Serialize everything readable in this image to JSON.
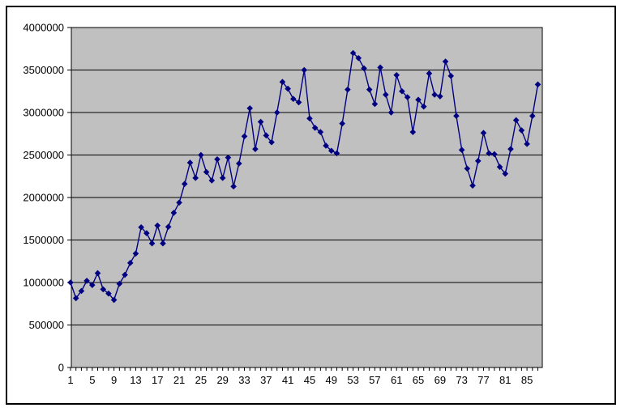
{
  "window": {
    "background": "#ffffff",
    "frame_border_color": "#000000"
  },
  "chart_data": {
    "type": "line",
    "title": "",
    "xlabel": "",
    "ylabel": "",
    "x_range": [
      1,
      87
    ],
    "values": [
      1000000,
      815000,
      900000,
      1020000,
      970000,
      1110000,
      920000,
      870000,
      795000,
      985000,
      1090000,
      1230000,
      1340000,
      1650000,
      1580000,
      1460000,
      1670000,
      1460000,
      1655000,
      1820000,
      1940000,
      2160000,
      2410000,
      2230000,
      2500000,
      2300000,
      2200000,
      2450000,
      2230000,
      2470000,
      2130000,
      2400000,
      2720000,
      3050000,
      2570000,
      2890000,
      2730000,
      2650000,
      3000000,
      3360000,
      3280000,
      3160000,
      3120000,
      3500000,
      2930000,
      2820000,
      2770000,
      2610000,
      2550000,
      2520000,
      2870000,
      3270000,
      3700000,
      3640000,
      3520000,
      3270000,
      3100000,
      3530000,
      3210000,
      3000000,
      3440000,
      3250000,
      3180000,
      2770000,
      3150000,
      3070000,
      3460000,
      3210000,
      3190000,
      3600000,
      3430000,
      2960000,
      2560000,
      2340000,
      2140000,
      2430000,
      2760000,
      2520000,
      2510000,
      2360000,
      2280000,
      2570000,
      2910000,
      2790000,
      2630000,
      2960000,
      3330000
    ],
    "ylim": [
      0,
      4000000
    ],
    "y_tick_step": 500000,
    "y_tick_labels": [
      "0",
      "500000",
      "1000000",
      "1500000",
      "2000000",
      "2500000",
      "3000000",
      "3500000",
      "4000000"
    ],
    "x_tick_labels": [
      "1",
      "5",
      "9",
      "13",
      "17",
      "21",
      "25",
      "29",
      "33",
      "37",
      "41",
      "45",
      "49",
      "53",
      "57",
      "61",
      "65",
      "69",
      "73",
      "77",
      "81",
      "85"
    ],
    "x_label_every": 4,
    "grid": "horizontal",
    "legend": "none",
    "marker": "diamond",
    "colors": {
      "series": "#000080",
      "plot_bg": "#c0c0c0",
      "grid": "#000000",
      "axis": "#000000",
      "text": "#000000"
    }
  }
}
